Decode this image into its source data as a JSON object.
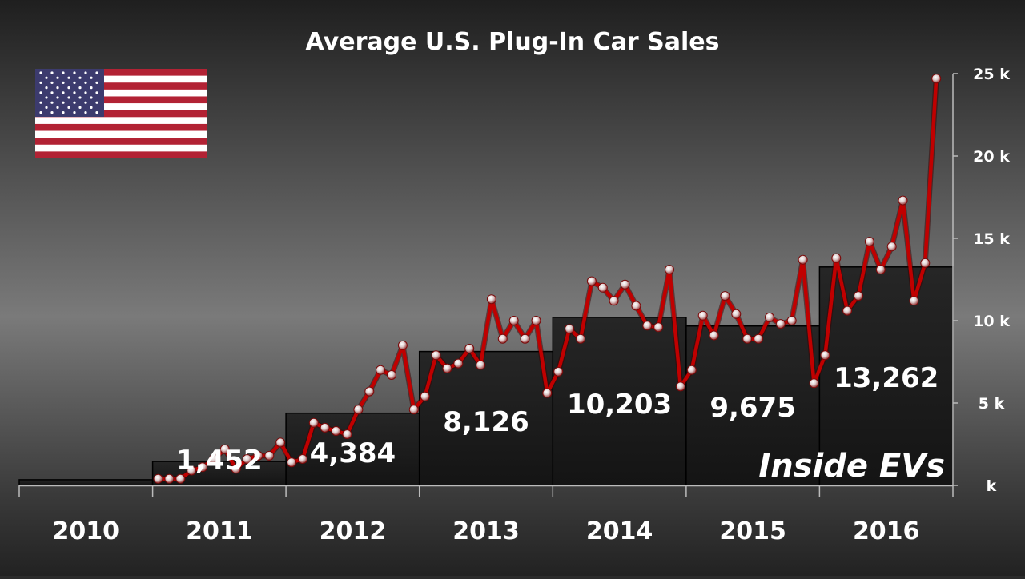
{
  "chart_data": {
    "type": "line",
    "title": "Average U.S. Plug-In Car Sales",
    "y_tick_labels": [
      "k",
      "5 k",
      "10 k",
      "15 k",
      "20 k",
      "25 k"
    ],
    "ylim": [
      0,
      25000
    ],
    "grid": false,
    "watermark": "Inside EVs",
    "colors": {
      "line": "#c00000",
      "bar_fill": "#1c1c1c",
      "bar_edge": "#000000"
    },
    "annual_average": {
      "type": "bar",
      "categories": [
        "2010",
        "2011",
        "2012",
        "2013",
        "2014",
        "2015",
        "2016"
      ],
      "values": [
        345,
        1452,
        4384,
        8126,
        10203,
        9675,
        13262
      ],
      "data_labels": [
        "",
        "1,452",
        "4,384",
        "8,126",
        "10,203",
        "9,675",
        "13,262"
      ]
    },
    "monthly_sales": {
      "type": "line",
      "start": "2011-01",
      "values": [
        400,
        400,
        400,
        900,
        1100,
        1600,
        2200,
        1000,
        1600,
        1800,
        1800,
        2600,
        1400,
        1600,
        3800,
        3500,
        3300,
        3100,
        4600,
        5700,
        7000,
        6700,
        8500,
        4600,
        5400,
        7900,
        7100,
        7400,
        8300,
        7300,
        11300,
        8900,
        10000,
        8900,
        10000,
        5600,
        6900,
        9500,
        8900,
        12400,
        12000,
        11200,
        12200,
        10900,
        9700,
        9600,
        13100,
        6000,
        7000,
        10300,
        9100,
        11500,
        10400,
        8900,
        8900,
        10200,
        9800,
        10000,
        13700,
        6200,
        7900,
        13800,
        10600,
        11500,
        14800,
        13100,
        14500,
        17300,
        11200,
        13500,
        24700
      ]
    }
  }
}
